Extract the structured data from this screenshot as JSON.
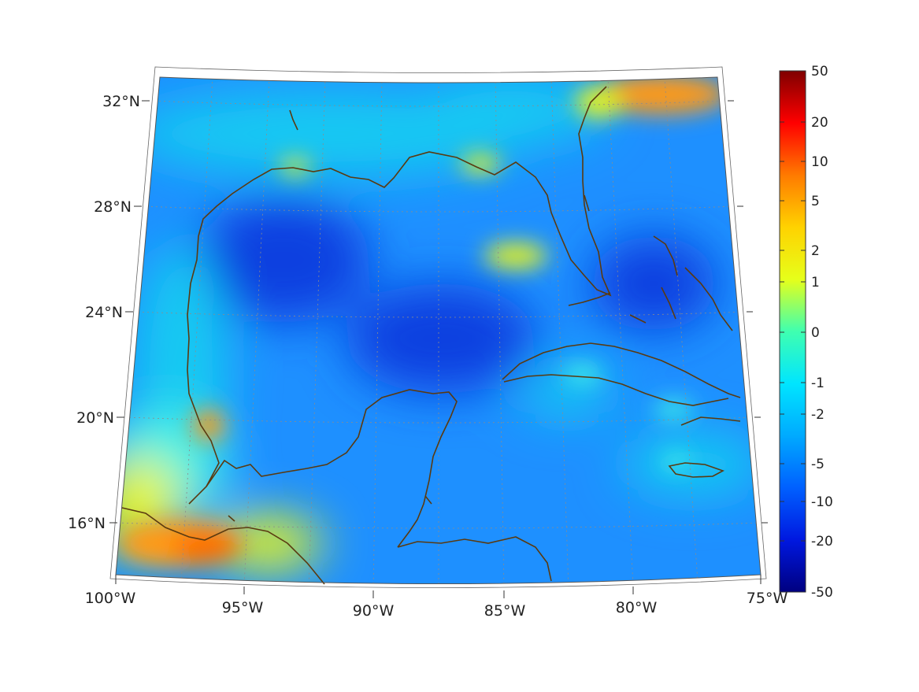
{
  "map": {
    "lat_labels": [
      "32°N",
      "28°N",
      "24°N",
      "20°N",
      "16°N"
    ],
    "lon_labels": [
      "100°W",
      "95°W",
      "90°W",
      "85°W",
      "80°W",
      "75°W"
    ],
    "coastline_color": "#5a3a10",
    "grid_color": "#8c8c8c",
    "field_colors": {
      "deep_blue": "#0a3fe0",
      "blue": "#0f63f0",
      "light_blue": "#1e90ff",
      "cyan": "#17c9f2",
      "aqua": "#3ff0e6",
      "yellow": "#e9f51a",
      "orange": "#ff9a12",
      "orange_red": "#ff6a00"
    }
  },
  "colorbar": {
    "ticks": [
      "50",
      "20",
      "10",
      "5",
      "2",
      "1",
      "0",
      "-1",
      "-2",
      "-5",
      "-10",
      "-20",
      "-50"
    ],
    "gradient": [
      "#7f0000",
      "#ff0000",
      "#ff7a00",
      "#ffd200",
      "#e6ff1a",
      "#3fffb0",
      "#00e5ff",
      "#00aaff",
      "#0060ff",
      "#0018e0",
      "#000080"
    ]
  }
}
